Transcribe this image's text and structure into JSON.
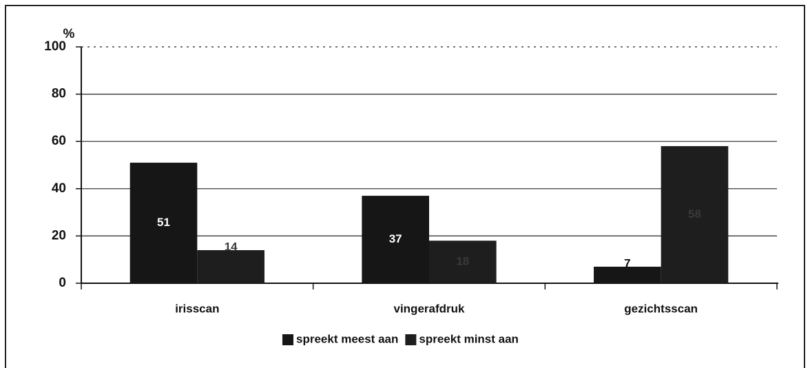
{
  "chart_data": {
    "type": "bar",
    "y_label": "%",
    "categories": [
      "irisscan",
      "vingerafdruk",
      "gezichtsscan"
    ],
    "series": [
      {
        "name": "spreekt meest aan",
        "color": "#161616",
        "values": [
          51,
          37,
          7
        ]
      },
      {
        "name": "spreekt minst aan",
        "color": "#1e1e1e",
        "values": [
          14,
          18,
          58
        ]
      }
    ],
    "ylim": [
      0,
      100
    ],
    "yticks": [
      0,
      20,
      40,
      60,
      80,
      100
    ],
    "grid": true,
    "legend": "bottom"
  }
}
